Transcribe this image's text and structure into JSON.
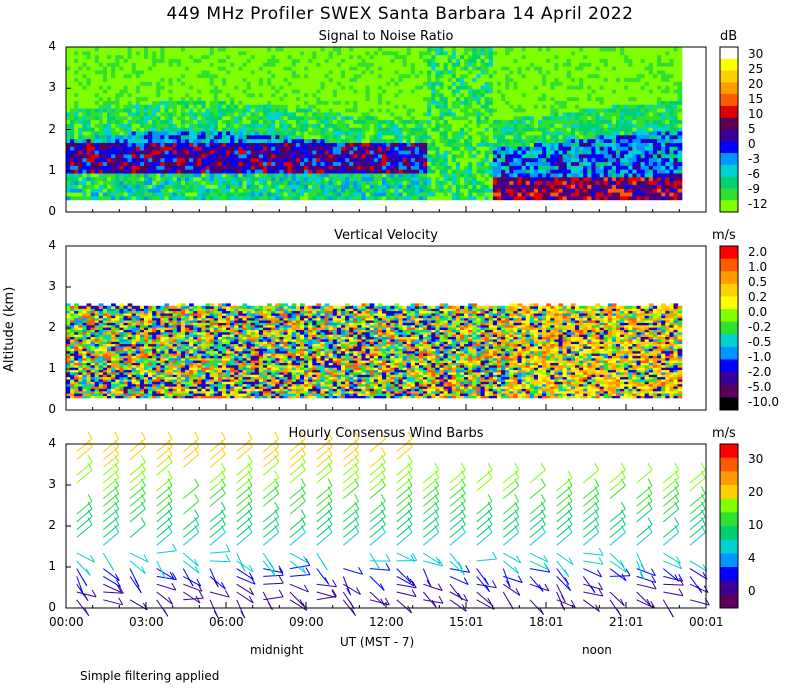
{
  "figure": {
    "title": "449 MHz Profiler SWEX Santa Barbara 14 April 2022",
    "ylabel": "Altitude (km)",
    "xlabel": "UT  (MST - 7)",
    "midnight_label": "midnight",
    "noon_label": "noon",
    "footnote": "Simple filtering applied",
    "x_ticks": [
      "00:00",
      "03:00",
      "06:00",
      "09:00",
      "12:00",
      "15:01",
      "18:01",
      "21:01",
      "00:01"
    ],
    "y_ticks": [
      "0",
      "1",
      "2",
      "3",
      "4"
    ]
  },
  "chart_data": [
    {
      "type": "heatmap",
      "title": "Signal to Noise Ratio",
      "units": "dB",
      "xlabel": "UT  (MST - 7)",
      "ylabel": "Altitude (km)",
      "xlim": [
        0,
        24
      ],
      "ylim": [
        0,
        4
      ],
      "colorbar_labels": [
        "30",
        "25",
        "20",
        "15",
        "10",
        "5",
        "0",
        "-3",
        "-6",
        "-9",
        "-12"
      ],
      "colorbar_colors": [
        "#ffffff",
        "#ffff00",
        "#ffd000",
        "#ff9a00",
        "#ff5a00",
        "#e00000",
        "#5a005a",
        "#3c0096",
        "#0000ff",
        "#0096ff",
        "#00d2d2",
        "#00d070",
        "#30e030",
        "#80ff00"
      ]
    },
    {
      "type": "heatmap",
      "title": "Vertical Velocity",
      "units": "m/s",
      "xlabel": "UT  (MST - 7)",
      "ylabel": "Altitude (km)",
      "xlim": [
        0,
        24
      ],
      "ylim": [
        0,
        4
      ],
      "colorbar_labels": [
        "2.0",
        "1.0",
        "0.5",
        "0.2",
        "0.0",
        "-0.2",
        "-0.5",
        "-1.0",
        "-2.0",
        "-5.0",
        "-10.0"
      ],
      "colorbar_colors": [
        "#ff0000",
        "#ff5a00",
        "#ff9a00",
        "#ffd000",
        "#ffff00",
        "#80ff00",
        "#30e030",
        "#00d2d2",
        "#0096ff",
        "#0000ff",
        "#3c0096",
        "#5a005a",
        "#000000"
      ]
    },
    {
      "type": "scatter",
      "title": "Hourly Consensus Wind Barbs",
      "units": "m/s",
      "xlabel": "UT  (MST - 7)",
      "ylabel": "Altitude (km)",
      "xlim": [
        0,
        24
      ],
      "ylim": [
        0,
        4
      ],
      "colorbar_labels": [
        "30",
        "20",
        "10",
        "4",
        "0"
      ],
      "colorbar_colors": [
        "#ff0000",
        "#ff5a00",
        "#ff9a00",
        "#ffd000",
        "#80ff00",
        "#30e030",
        "#00d070",
        "#00d2d2",
        "#0096ff",
        "#0000ff",
        "#3c0096",
        "#5a005a"
      ]
    }
  ]
}
